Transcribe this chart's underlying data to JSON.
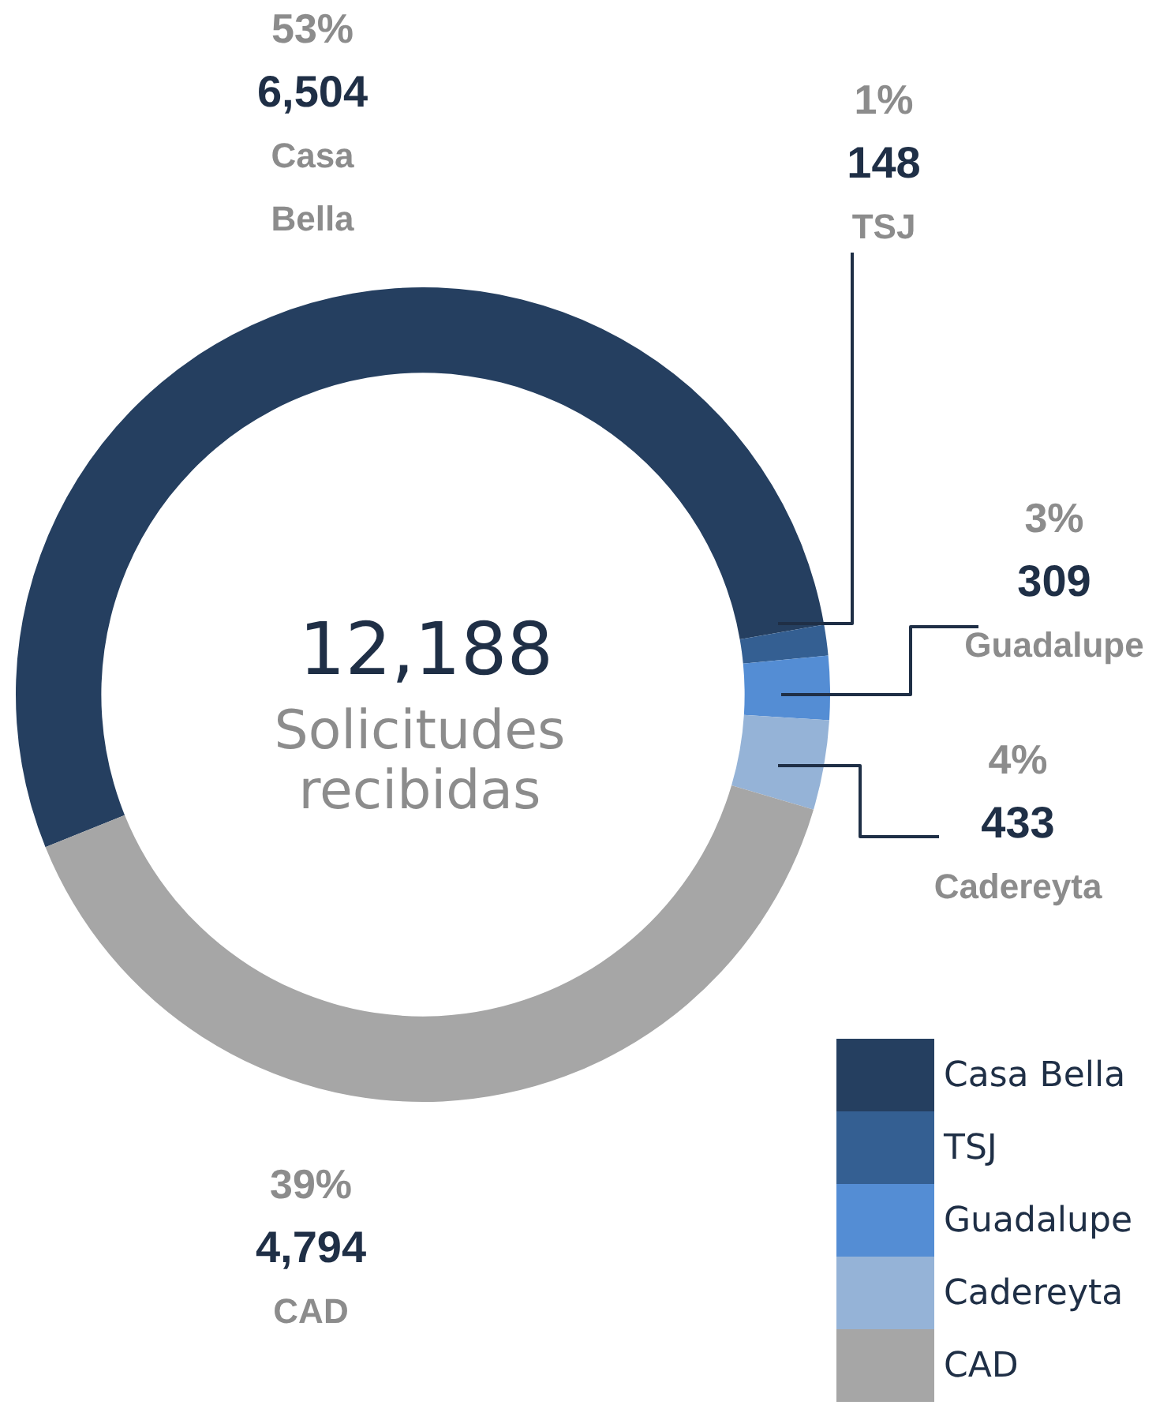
{
  "chart_data": {
    "type": "donut",
    "categories": [
      "Casa Bella",
      "TSJ",
      "Guadalupe",
      "Cadereyta",
      "CAD"
    ],
    "values": [
      6504,
      148,
      309,
      433,
      4794
    ],
    "colors": [
      "#253f60",
      "#345f92",
      "#548dd4",
      "#95b3d7",
      "#a6a6a6"
    ],
    "value_labels": [
      "6,504",
      "148",
      "309",
      "433",
      "4,794"
    ],
    "annotations": [
      "12,188",
      "Solicitudes recibidas",
      {
        "text": "53%",
        "x": "Casa Bella"
      },
      {
        "text": "1%",
        "x": "TSJ"
      },
      {
        "text": "3%",
        "x": "Guadalupe"
      },
      {
        "text": "4%",
        "x": "Cadereyta"
      },
      {
        "text": "39%",
        "x": "CAD"
      }
    ],
    "legend": "bottom right"
  }
}
